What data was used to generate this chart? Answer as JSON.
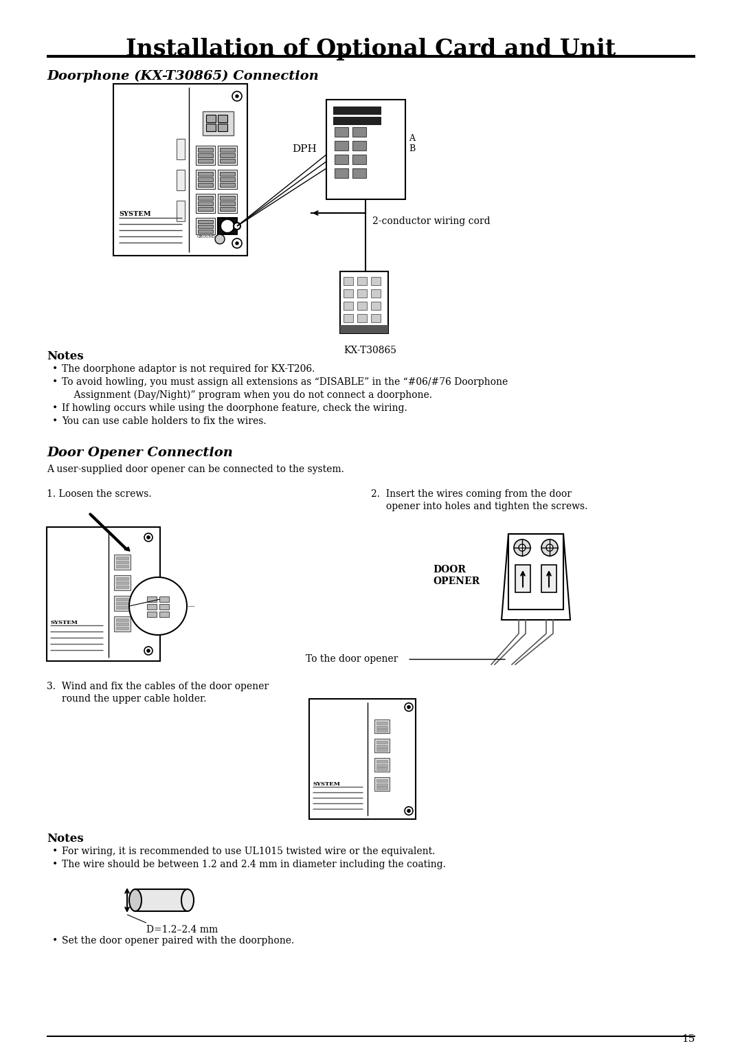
{
  "title": "Installation of Optional Card and Unit",
  "section1_title": "Doorphone (KX-T30865) Connection",
  "section2_title": "Door Opener Connection",
  "section2_intro": "A user-supplied door opener can be connected to the system.",
  "notes1_title": "Notes",
  "notes1_bullets": [
    "The doorphone adaptor is not required for KX-T206.",
    "To avoid howling, you must assign all extensions as “DISABLE” in the “#06/#76 Doorphone Assignment (Day/Night)” program when you do not connect a doorphone.",
    "If howling occurs while using the doorphone feature, check the wiring.",
    "You can use cable holders to fix the wires."
  ],
  "notes2_title": "Notes",
  "notes2_bullets": [
    "For wiring, it is recommended to use UL1015 twisted wire or the equivalent.",
    "The wire should be between 1.2 and 2.4 mm in diameter including the coating."
  ],
  "step1_text": "1. Loosen the screws.",
  "step2_line1": "2.  Insert the wires coming from the door",
  "step2_line2": "     opener into holes and tighten the screws.",
  "step3_line1": "3.  Wind and fix the cables of the door opener",
  "step3_line2": "     round the upper cable holder.",
  "label_dph": "DPH",
  "label_a": "A",
  "label_b": "B",
  "label_kxt30865": "KX-T30865",
  "label_2cond": "2-conductor wiring cord",
  "label_door_opener": "DOOR\nOPENER",
  "label_to_door": "To the door opener",
  "label_diameter": "D=1.2–2.4 mm",
  "last_bullet": "Set the door opener paired with the doorphone.",
  "page_number": "15",
  "bg_color": "#ffffff",
  "text_color": "#000000"
}
